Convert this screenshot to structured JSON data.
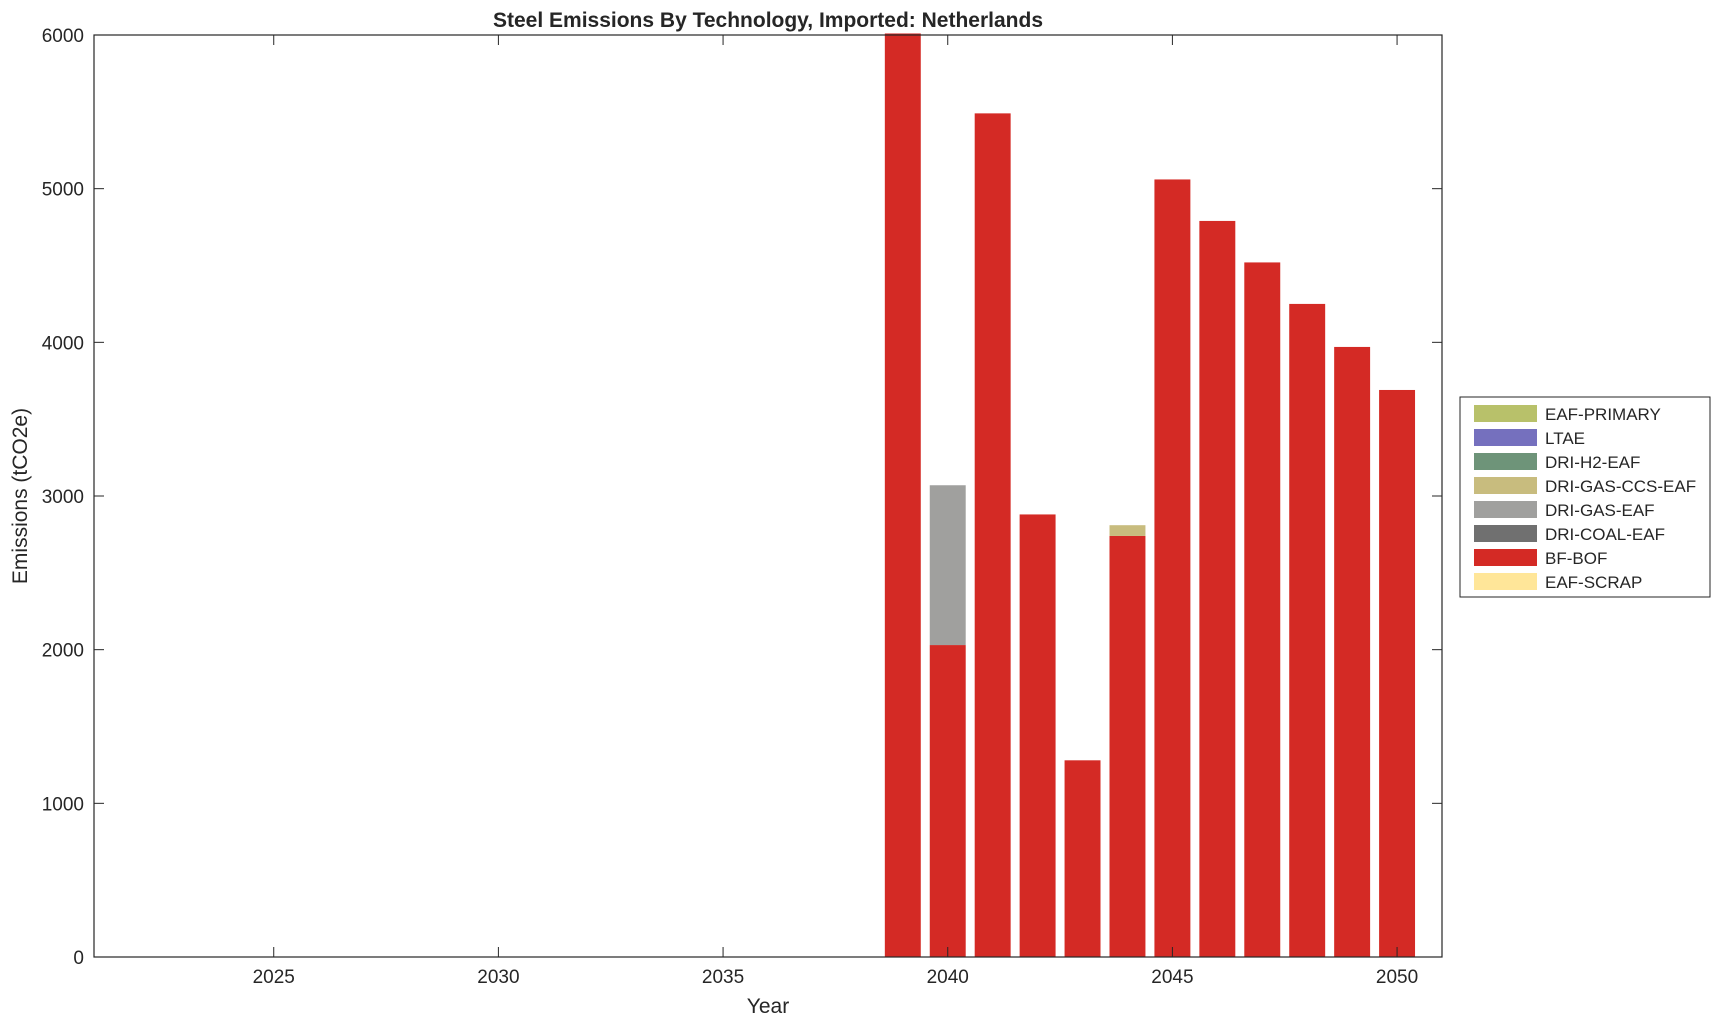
{
  "chart_data": {
    "type": "bar",
    "stacked": true,
    "title": "Steel Emissions By Technology, Imported: Netherlands",
    "xlabel": "Year",
    "ylabel": "Emissions (tCO2e)",
    "xlim": [
      2021,
      2051
    ],
    "ylim": [
      0,
      6000
    ],
    "xticks": [
      2025,
      2030,
      2035,
      2040,
      2045,
      2050
    ],
    "yticks": [
      0,
      1000,
      2000,
      3000,
      4000,
      5000,
      6000
    ],
    "xtick_labels": [
      "2025",
      "2030",
      "2035",
      "2040",
      "2045",
      "2050"
    ],
    "ytick_labels": [
      "0",
      "1000",
      "2000",
      "3000",
      "4000",
      "5000",
      "6000"
    ],
    "grid": false,
    "legend_position": "right",
    "x": [
      2022,
      2023,
      2024,
      2025,
      2026,
      2027,
      2028,
      2029,
      2030,
      2031,
      2032,
      2033,
      2034,
      2035,
      2036,
      2037,
      2038,
      2039,
      2040,
      2041,
      2042,
      2043,
      2044,
      2045,
      2046,
      2047,
      2048,
      2049,
      2050
    ],
    "series": [
      {
        "name": "EAF-SCRAP",
        "color": "#FFE699",
        "values": [
          0,
          0,
          0,
          0,
          0,
          0,
          0,
          0,
          0,
          0,
          0,
          0,
          0,
          0,
          0,
          0,
          0,
          0,
          0,
          0,
          0,
          0,
          0,
          0,
          0,
          0,
          0,
          0,
          0
        ]
      },
      {
        "name": "BF-BOF",
        "color": "#D42A25",
        "values": [
          0,
          0,
          0,
          0,
          0,
          0,
          0,
          0,
          0,
          0,
          0,
          0,
          0,
          0,
          0,
          0,
          0,
          6010,
          2030,
          5490,
          2880,
          1280,
          2740,
          5060,
          4790,
          4520,
          4250,
          3970,
          3690
        ]
      },
      {
        "name": "DRI-COAL-EAF",
        "color": "#707070",
        "values": [
          0,
          0,
          0,
          0,
          0,
          0,
          0,
          0,
          0,
          0,
          0,
          0,
          0,
          0,
          0,
          0,
          0,
          0,
          0,
          0,
          0,
          0,
          0,
          0,
          0,
          0,
          0,
          0,
          0
        ]
      },
      {
        "name": "DRI-GAS-EAF",
        "color": "#A0A09E",
        "values": [
          0,
          0,
          0,
          0,
          0,
          0,
          0,
          0,
          0,
          0,
          0,
          0,
          0,
          0,
          0,
          0,
          0,
          0,
          1040,
          0,
          0,
          0,
          0,
          0,
          0,
          0,
          0,
          0,
          0
        ]
      },
      {
        "name": "DRI-GAS-CCS-EAF",
        "color": "#C8BC7E",
        "values": [
          0,
          0,
          0,
          0,
          0,
          0,
          0,
          0,
          0,
          0,
          0,
          0,
          0,
          0,
          0,
          0,
          0,
          0,
          0,
          0,
          0,
          0,
          70,
          0,
          0,
          0,
          0,
          0,
          0
        ]
      },
      {
        "name": "DRI-H2-EAF",
        "color": "#6E9479",
        "values": [
          0,
          0,
          0,
          0,
          0,
          0,
          0,
          0,
          0,
          0,
          0,
          0,
          0,
          0,
          0,
          0,
          0,
          0,
          0,
          0,
          0,
          0,
          0,
          0,
          0,
          0,
          0,
          0,
          0
        ]
      },
      {
        "name": "LTAE",
        "color": "#7570BE",
        "values": [
          0,
          0,
          0,
          0,
          0,
          0,
          0,
          0,
          0,
          0,
          0,
          0,
          0,
          0,
          0,
          0,
          0,
          0,
          0,
          0,
          0,
          0,
          0,
          0,
          0,
          0,
          0,
          0,
          0
        ]
      },
      {
        "name": "EAF-PRIMARY",
        "color": "#B8C16A",
        "values": [
          0,
          0,
          0,
          0,
          0,
          0,
          0,
          0,
          0,
          0,
          0,
          0,
          0,
          0,
          0,
          0,
          0,
          0,
          0,
          0,
          0,
          0,
          0,
          0,
          0,
          0,
          0,
          0,
          0
        ]
      }
    ],
    "legend_order": [
      "EAF-PRIMARY",
      "LTAE",
      "DRI-H2-EAF",
      "DRI-GAS-CCS-EAF",
      "DRI-GAS-EAF",
      "DRI-COAL-EAF",
      "BF-BOF",
      "EAF-SCRAP"
    ]
  }
}
